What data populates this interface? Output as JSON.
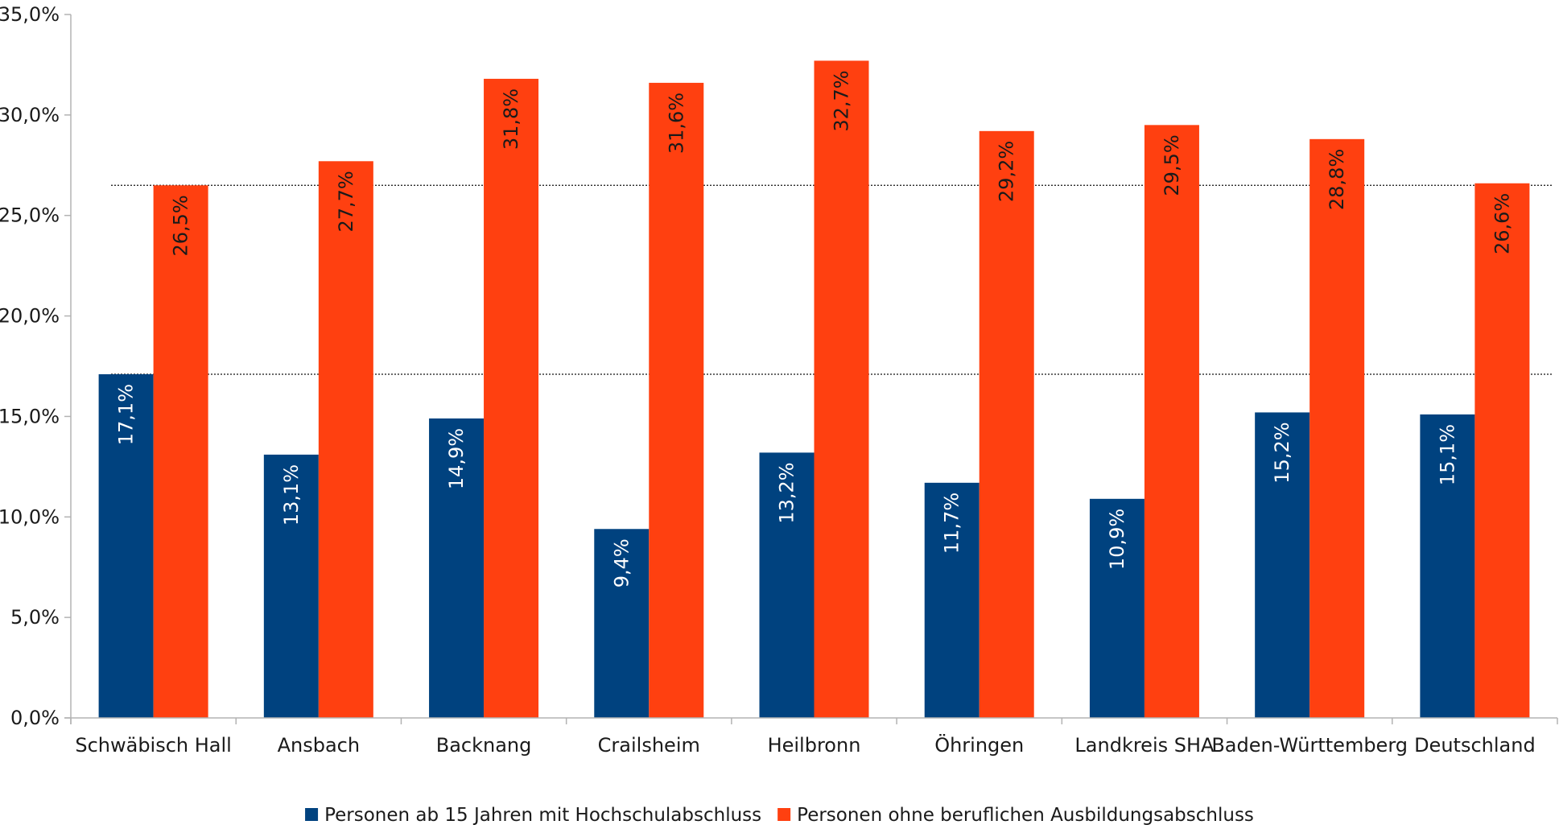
{
  "chart_data": {
    "type": "bar",
    "title": "",
    "xlabel": "",
    "ylabel": "",
    "categories": [
      "Schwäbisch Hall",
      "Ansbach",
      "Backnang",
      "Crailsheim",
      "Heilbronn",
      "Öhringen",
      "Landkreis SHA",
      "Baden-Württemberg",
      "Deutschland"
    ],
    "series": [
      {
        "name": "Personen ab 15 Jahren mit Hochschulabschluss",
        "color": "#00427f",
        "label_color": "#ffffff",
        "values": [
          17.1,
          13.1,
          14.9,
          9.4,
          13.2,
          11.7,
          10.9,
          15.2,
          15.1
        ],
        "labels": [
          "17,1%",
          "13,1%",
          "14,9%",
          "9,4%",
          "13,2%",
          "11,7%",
          "10,9%",
          "15,2%",
          "15,1%"
        ]
      },
      {
        "name": "Personen ohne beruflichen Ausbildungsabschluss",
        "color": "#ff4010",
        "label_color": "#1a1a1a",
        "values": [
          26.5,
          27.7,
          31.8,
          31.6,
          32.7,
          29.2,
          29.5,
          28.8,
          26.6
        ],
        "labels": [
          "26,5%",
          "27,7%",
          "31,8%",
          "31,6%",
          "32,7%",
          "29,2%",
          "29,5%",
          "28,8%",
          "26,6%"
        ]
      }
    ],
    "ylim": [
      0,
      35
    ],
    "yticks": [
      0,
      5,
      10,
      15,
      20,
      25,
      30,
      35
    ],
    "ytick_labels": [
      "0,0%",
      "5,0%",
      "10,0%",
      "15,0%",
      "20,0%",
      "25,0%",
      "30,0%",
      "35,0%"
    ],
    "reference_lines": [
      {
        "value": 17.1,
        "style": "dotted"
      },
      {
        "value": 26.5,
        "style": "dotted"
      }
    ],
    "grid": false,
    "legend_position": "bottom"
  }
}
